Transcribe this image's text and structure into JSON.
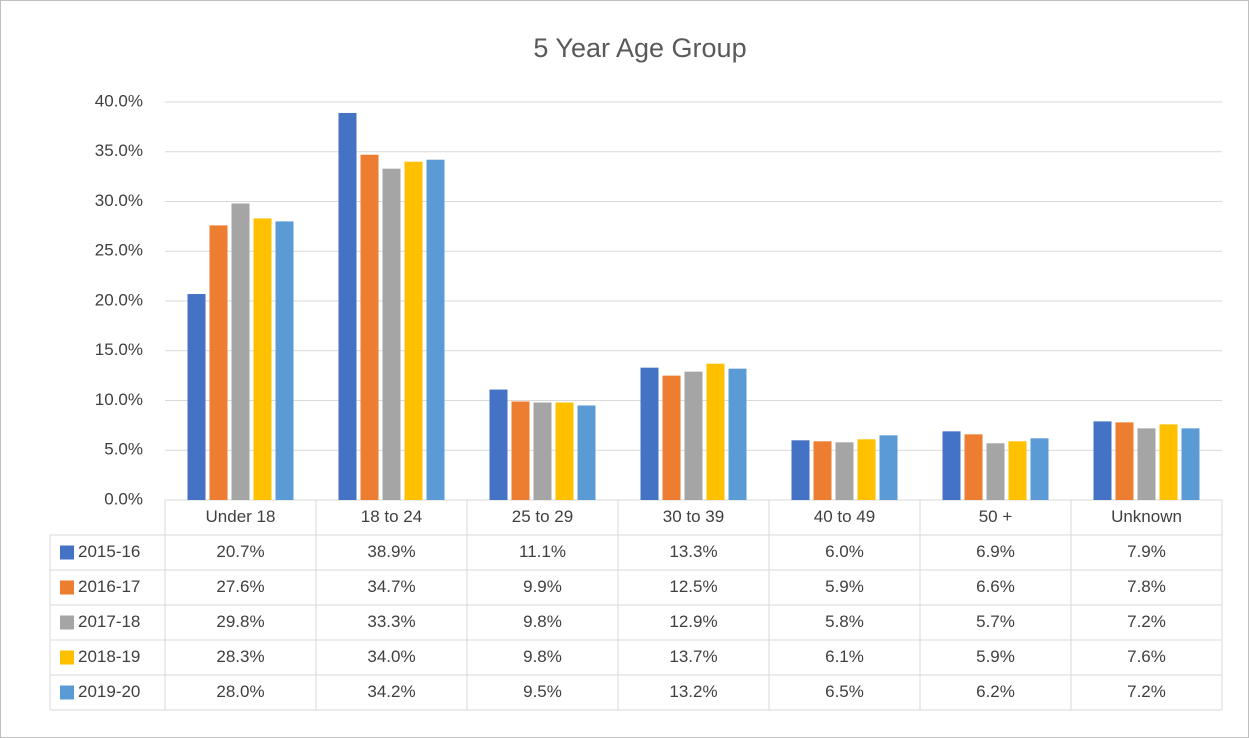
{
  "chart_data": {
    "type": "bar",
    "title": "5 Year Age Group",
    "categories": [
      "Under 18",
      "18 to 24",
      "25 to 29",
      "30 to 39",
      "40 to 49",
      "50 +",
      "Unknown"
    ],
    "series": [
      {
        "name": "2015-16",
        "color": "#4472c4",
        "values": [
          20.7,
          38.9,
          11.1,
          13.3,
          6.0,
          6.9,
          7.9
        ],
        "value_labels": [
          "20.7%",
          "38.9%",
          "11.1%",
          "13.3%",
          "6.0%",
          "6.9%",
          "7.9%"
        ]
      },
      {
        "name": "2016-17",
        "color": "#ed7d31",
        "values": [
          27.6,
          34.7,
          9.9,
          12.5,
          5.9,
          6.6,
          7.8
        ],
        "value_labels": [
          "27.6%",
          "34.7%",
          "9.9%",
          "12.5%",
          "5.9%",
          "6.6%",
          "7.8%"
        ]
      },
      {
        "name": "2017-18",
        "color": "#a5a5a5",
        "values": [
          29.8,
          33.3,
          9.8,
          12.9,
          5.8,
          5.7,
          7.2
        ],
        "value_labels": [
          "29.8%",
          "33.3%",
          "9.8%",
          "12.9%",
          "5.8%",
          "5.7%",
          "7.2%"
        ]
      },
      {
        "name": "2018-19",
        "color": "#ffc000",
        "values": [
          28.3,
          34.0,
          9.8,
          13.7,
          6.1,
          5.9,
          7.6
        ],
        "value_labels": [
          "28.3%",
          "34.0%",
          "9.8%",
          "13.7%",
          "6.1%",
          "5.9%",
          "7.6%"
        ]
      },
      {
        "name": "2019-20",
        "color": "#5b9bd5",
        "values": [
          28.0,
          34.2,
          9.5,
          13.2,
          6.5,
          6.2,
          7.2
        ],
        "value_labels": [
          "28.0%",
          "34.2%",
          "9.5%",
          "13.2%",
          "6.5%",
          "6.2%",
          "7.2%"
        ]
      }
    ],
    "ylim": [
      0,
      40
    ],
    "yticks": [
      {
        "value": 0,
        "label": "0.0%"
      },
      {
        "value": 5,
        "label": "5.0%"
      },
      {
        "value": 10,
        "label": "10.0%"
      },
      {
        "value": 15,
        "label": "15.0%"
      },
      {
        "value": 20,
        "label": "20.0%"
      },
      {
        "value": 25,
        "label": "25.0%"
      },
      {
        "value": 30,
        "label": "30.0%"
      },
      {
        "value": 35,
        "label": "35.0%"
      },
      {
        "value": 40,
        "label": "40.0%"
      }
    ],
    "grid": true
  }
}
